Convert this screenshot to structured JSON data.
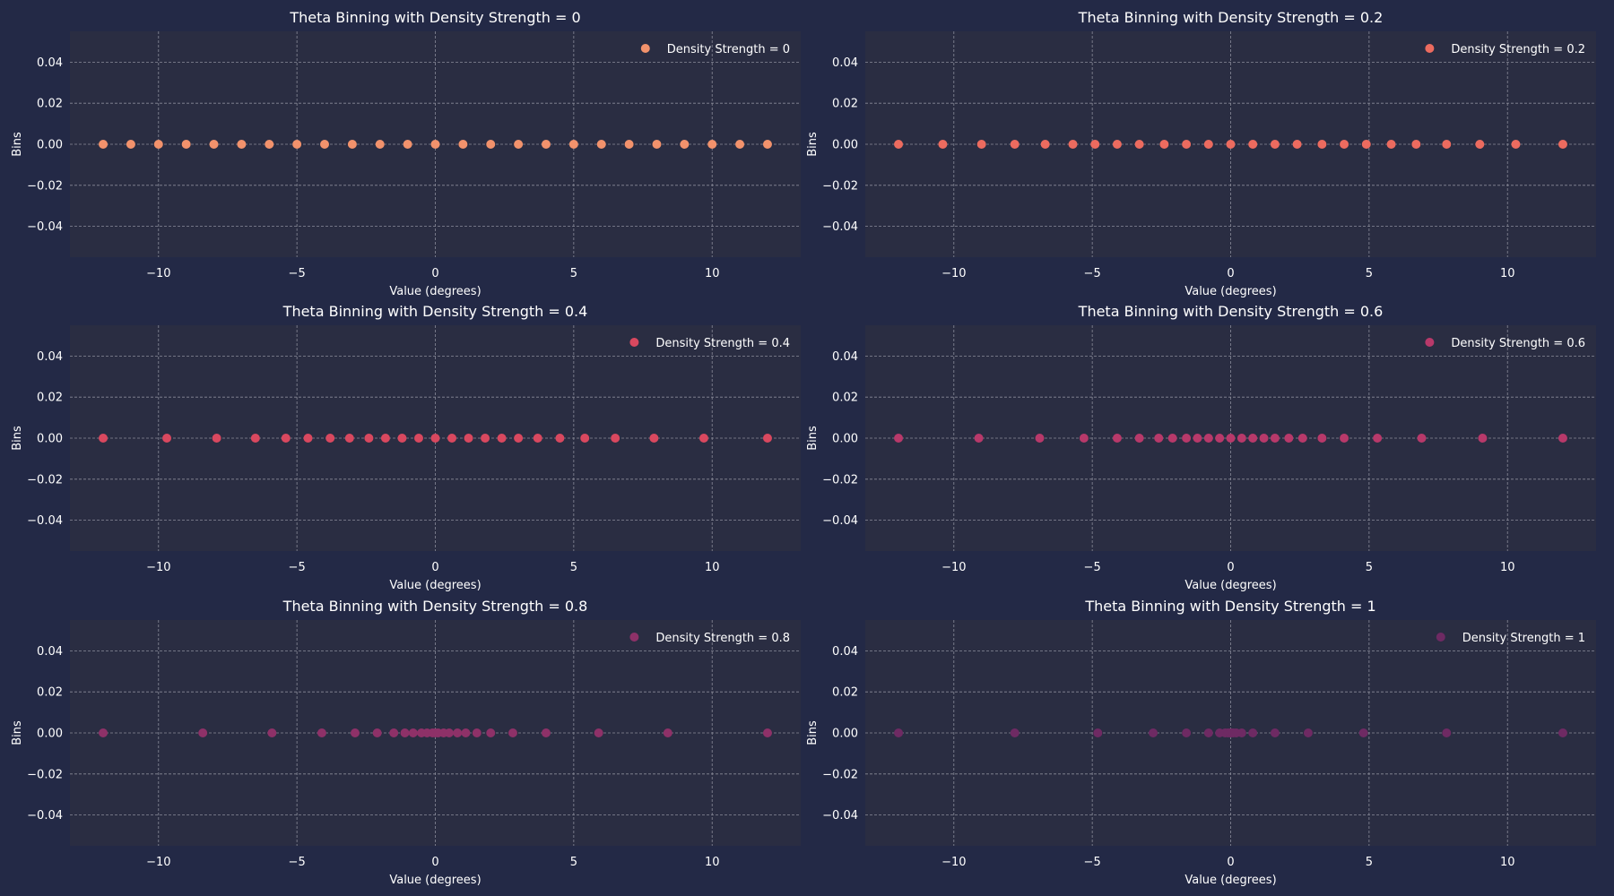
{
  "figure": {
    "background": "#232946",
    "panel_background": "#2A2D42",
    "text_color": "#FFFFFF",
    "grid_color": "#8A8C99"
  },
  "chart_data": [
    {
      "type": "scatter",
      "title": "Theta Binning with Density Strength = 0",
      "xlabel": "Value (degrees)",
      "ylabel": "Bins",
      "xlim": [
        -13.2,
        13.2
      ],
      "ylim": [
        -0.055,
        0.055
      ],
      "xticks": [
        -10,
        -5,
        0,
        5,
        10
      ],
      "yticks": [
        -0.04,
        -0.02,
        0.0,
        0.02,
        0.04
      ],
      "xtick_labels": [
        "−10",
        "−5",
        "0",
        "5",
        "10"
      ],
      "ytick_labels": [
        "−0.04",
        "−0.02",
        "0.00",
        "0.02",
        "0.04"
      ],
      "grid": true,
      "legend_position": "top-right",
      "series": [
        {
          "name": "Density Strength = 0",
          "color": "#F2926C",
          "x": [
            -12,
            -11,
            -10,
            -9,
            -8,
            -7,
            -6,
            -5,
            -4,
            -3,
            -2,
            -1,
            0,
            1,
            2,
            3,
            4,
            5,
            6,
            7,
            8,
            9,
            10,
            11,
            12
          ],
          "y": [
            0,
            0,
            0,
            0,
            0,
            0,
            0,
            0,
            0,
            0,
            0,
            0,
            0,
            0,
            0,
            0,
            0,
            0,
            0,
            0,
            0,
            0,
            0,
            0,
            0
          ]
        }
      ]
    },
    {
      "type": "scatter",
      "title": "Theta Binning with Density Strength = 0.2",
      "xlabel": "Value (degrees)",
      "ylabel": "Bins",
      "xlim": [
        -13.2,
        13.2
      ],
      "ylim": [
        -0.055,
        0.055
      ],
      "xticks": [
        -10,
        -5,
        0,
        5,
        10
      ],
      "yticks": [
        -0.04,
        -0.02,
        0.0,
        0.02,
        0.04
      ],
      "xtick_labels": [
        "−10",
        "−5",
        "0",
        "5",
        "10"
      ],
      "ytick_labels": [
        "−0.04",
        "−0.02",
        "0.00",
        "0.02",
        "0.04"
      ],
      "grid": true,
      "legend_position": "top-right",
      "series": [
        {
          "name": "Density Strength = 0.2",
          "color": "#EC6B5F",
          "x": [
            -12,
            -10.4,
            -9.0,
            -7.8,
            -6.7,
            -5.7,
            -4.9,
            -4.1,
            -3.3,
            -2.4,
            -1.6,
            -0.8,
            0,
            0.8,
            1.6,
            2.4,
            3.3,
            4.1,
            4.9,
            5.8,
            6.7,
            7.8,
            9.0,
            10.3,
            12
          ]
        }
      ]
    },
    {
      "type": "scatter",
      "title": "Theta Binning with Density Strength = 0.4",
      "xlabel": "Value (degrees)",
      "ylabel": "Bins",
      "xlim": [
        -13.2,
        13.2
      ],
      "ylim": [
        -0.055,
        0.055
      ],
      "xticks": [
        -10,
        -5,
        0,
        5,
        10
      ],
      "yticks": [
        -0.04,
        -0.02,
        0.0,
        0.02,
        0.04
      ],
      "xtick_labels": [
        "−10",
        "−5",
        "0",
        "5",
        "10"
      ],
      "ytick_labels": [
        "−0.04",
        "−0.02",
        "0.00",
        "0.02",
        "0.04"
      ],
      "grid": true,
      "legend_position": "top-right",
      "series": [
        {
          "name": "Density Strength = 0.4",
          "color": "#D9485F",
          "x": [
            -12,
            -9.7,
            -7.9,
            -6.5,
            -5.4,
            -4.6,
            -3.8,
            -3.1,
            -2.4,
            -1.8,
            -1.2,
            -0.6,
            0,
            0.6,
            1.2,
            1.8,
            2.4,
            3.0,
            3.7,
            4.5,
            5.4,
            6.5,
            7.9,
            9.7,
            12
          ]
        }
      ]
    },
    {
      "type": "scatter",
      "title": "Theta Binning with Density Strength = 0.6",
      "xlabel": "Value (degrees)",
      "ylabel": "Bins",
      "xlim": [
        -13.2,
        13.2
      ],
      "ylim": [
        -0.055,
        0.055
      ],
      "xticks": [
        -10,
        -5,
        0,
        5,
        10
      ],
      "yticks": [
        -0.04,
        -0.02,
        0.0,
        0.02,
        0.04
      ],
      "xtick_labels": [
        "−10",
        "−5",
        "0",
        "5",
        "10"
      ],
      "ytick_labels": [
        "−0.04",
        "−0.02",
        "0.00",
        "0.02",
        "0.04"
      ],
      "grid": true,
      "legend_position": "top-right",
      "series": [
        {
          "name": "Density Strength = 0.6",
          "color": "#B8396A",
          "x": [
            -12,
            -9.1,
            -6.9,
            -5.3,
            -4.1,
            -3.3,
            -2.6,
            -2.1,
            -1.6,
            -1.2,
            -0.8,
            -0.4,
            0,
            0.4,
            0.8,
            1.2,
            1.6,
            2.1,
            2.6,
            3.3,
            4.1,
            5.3,
            6.9,
            9.1,
            12
          ]
        }
      ]
    },
    {
      "type": "scatter",
      "title": "Theta Binning with Density Strength = 0.8",
      "xlabel": "Value (degrees)",
      "ylabel": "Bins",
      "xlim": [
        -13.2,
        13.2
      ],
      "ylim": [
        -0.055,
        0.055
      ],
      "xticks": [
        -10,
        -5,
        0,
        5,
        10
      ],
      "yticks": [
        -0.04,
        -0.02,
        0.0,
        0.02,
        0.04
      ],
      "xtick_labels": [
        "−10",
        "−5",
        "0",
        "5",
        "10"
      ],
      "ytick_labels": [
        "−0.04",
        "−0.02",
        "0.00",
        "0.02",
        "0.04"
      ],
      "grid": true,
      "legend_position": "top-right",
      "series": [
        {
          "name": "Density Strength = 0.8",
          "color": "#8E3168",
          "x": [
            -12,
            -8.4,
            -5.9,
            -4.1,
            -2.9,
            -2.1,
            -1.5,
            -1.1,
            -0.8,
            -0.5,
            -0.3,
            -0.1,
            0,
            0.1,
            0.3,
            0.5,
            0.8,
            1.1,
            1.5,
            2.0,
            2.8,
            4.0,
            5.9,
            8.4,
            12
          ]
        }
      ]
    },
    {
      "type": "scatter",
      "title": "Theta Binning with Density Strength = 1",
      "xlabel": "Value (degrees)",
      "ylabel": "Bins",
      "xlim": [
        -13.2,
        13.2
      ],
      "ylim": [
        -0.055,
        0.055
      ],
      "xticks": [
        -10,
        -5,
        0,
        5,
        10
      ],
      "yticks": [
        -0.04,
        -0.02,
        0.0,
        0.02,
        0.04
      ],
      "xtick_labels": [
        "−10",
        "−5",
        "0",
        "5",
        "10"
      ],
      "ytick_labels": [
        "−0.04",
        "−0.02",
        "0.00",
        "0.02",
        "0.04"
      ],
      "grid": true,
      "legend_position": "top-right",
      "series": [
        {
          "name": "Density Strength = 1",
          "color": "#6E2A63",
          "x": [
            -12,
            -7.8,
            -4.8,
            -2.8,
            -1.6,
            -0.8,
            -0.4,
            -0.2,
            -0.1,
            0,
            0,
            0,
            0,
            0,
            0,
            0,
            0.1,
            0.2,
            0.4,
            0.8,
            1.6,
            2.8,
            4.8,
            7.8,
            12
          ]
        }
      ]
    }
  ]
}
